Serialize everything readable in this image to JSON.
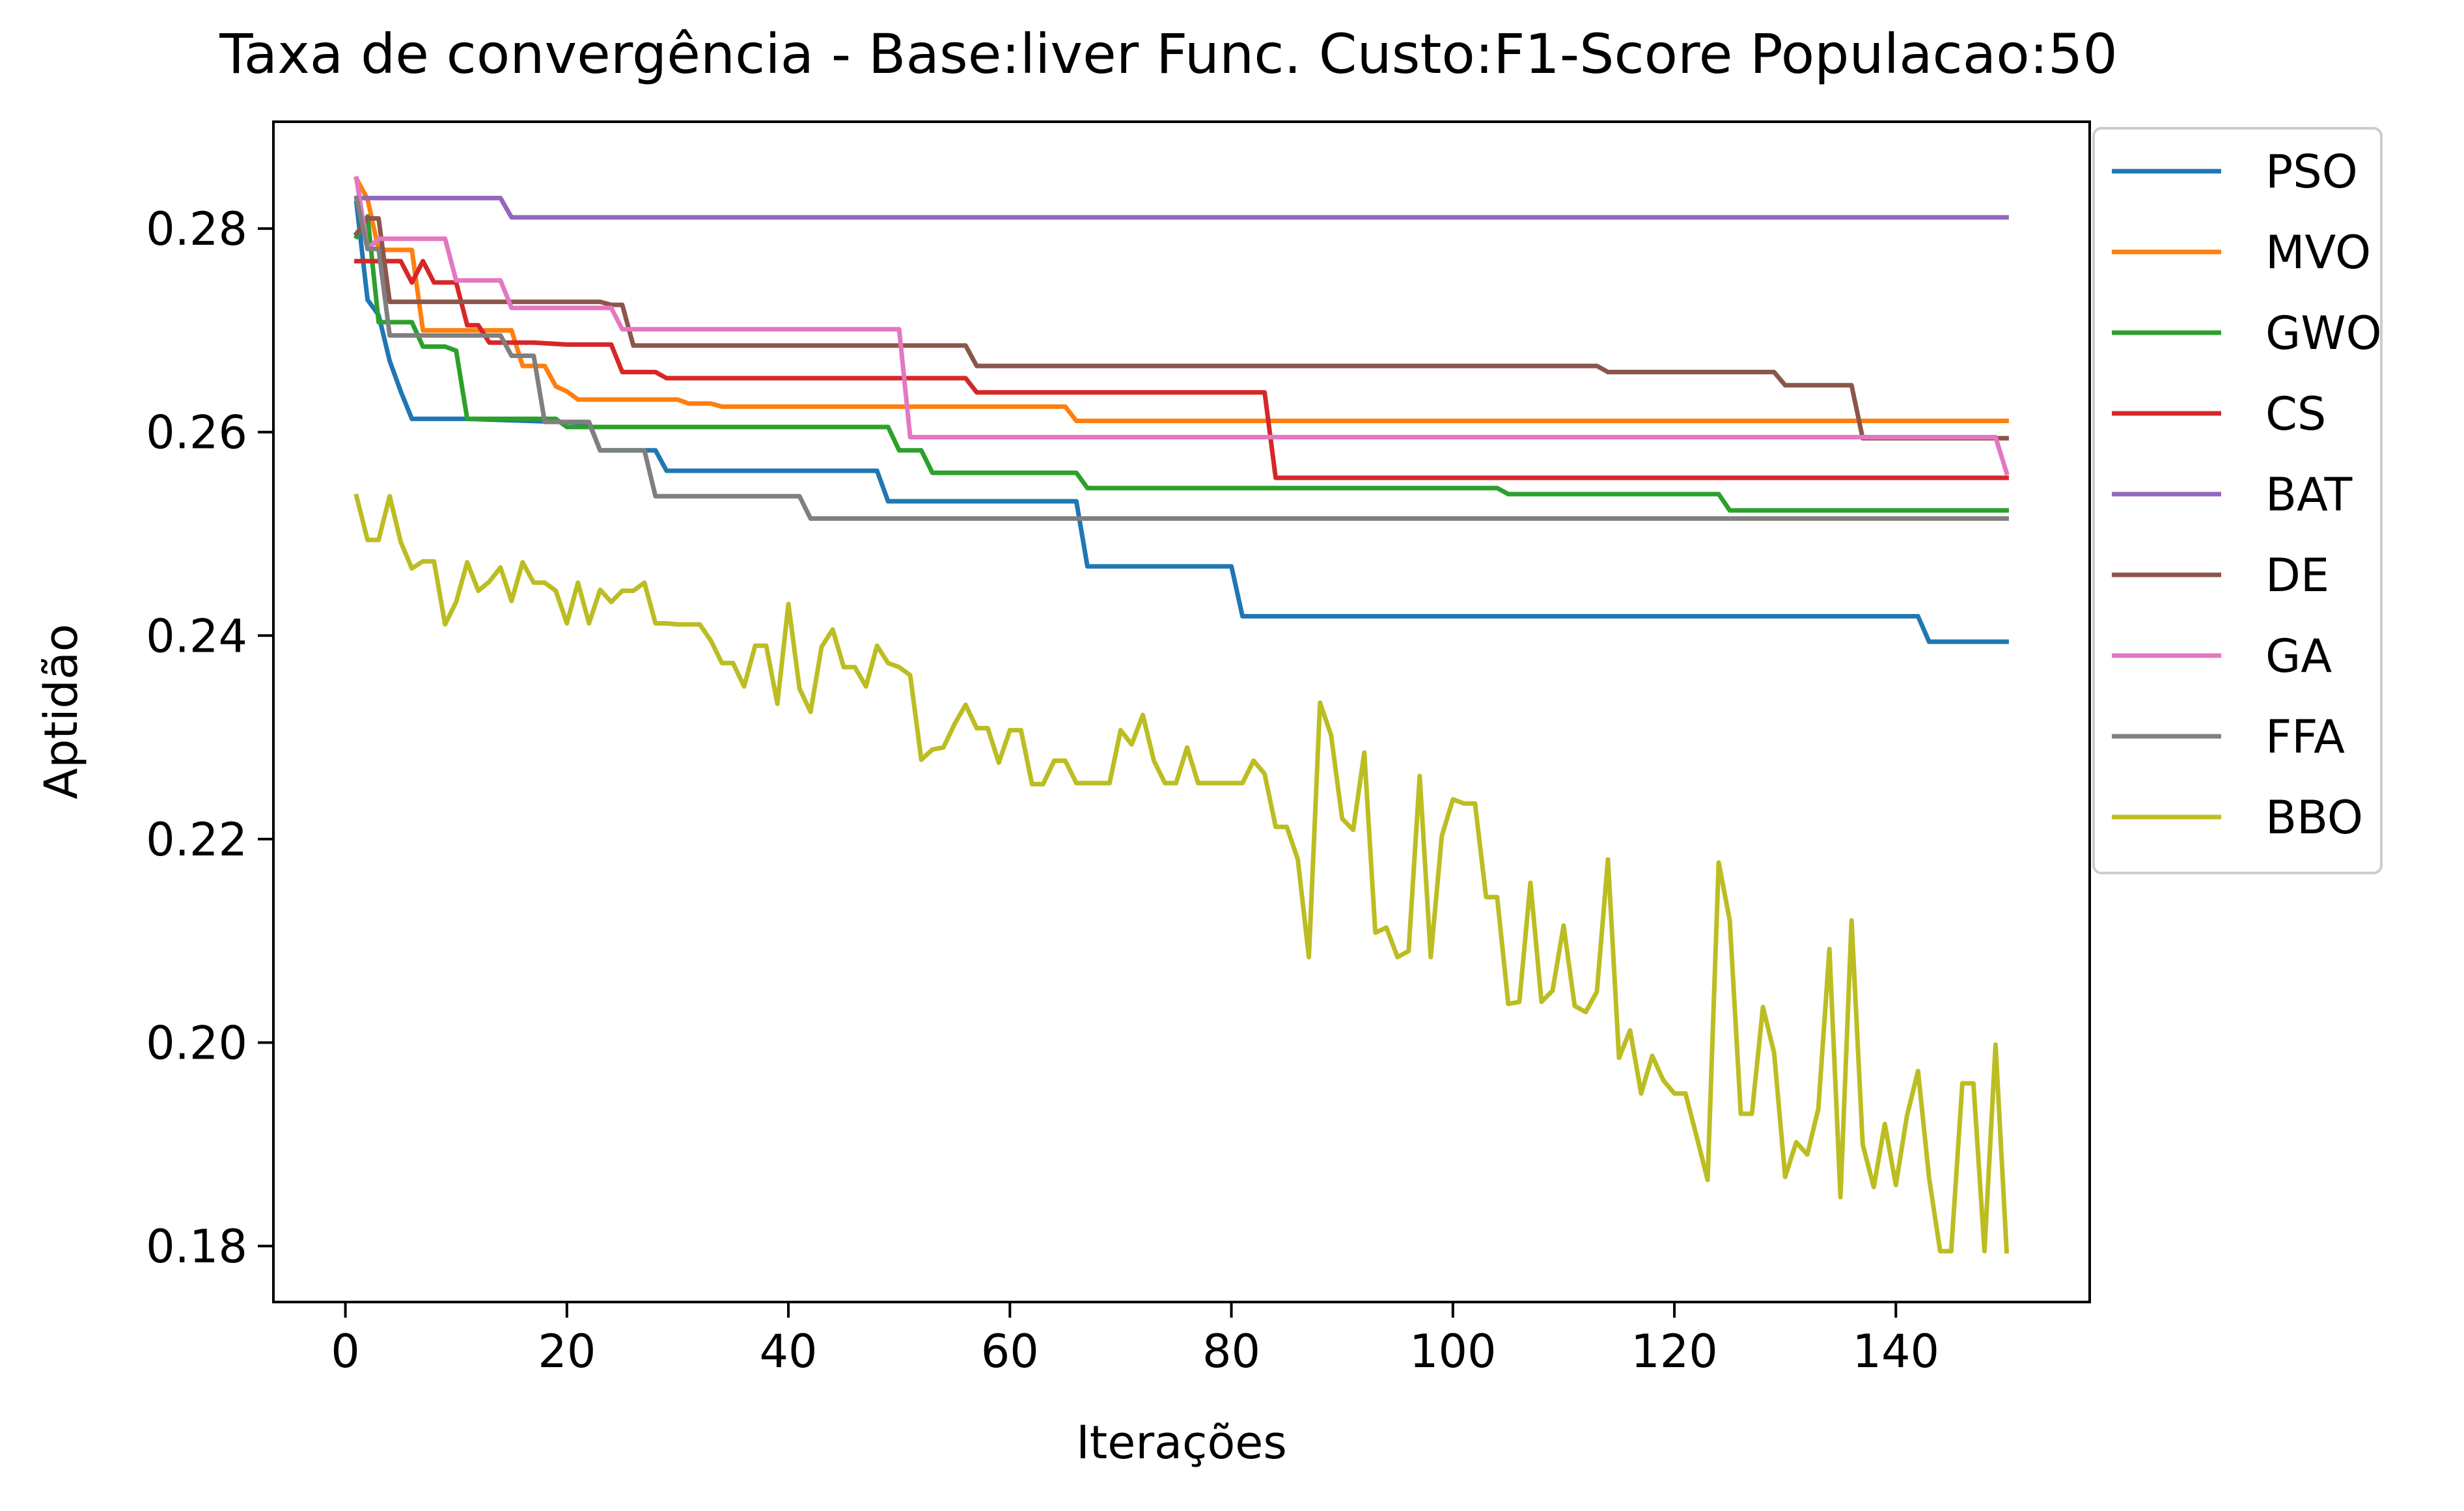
{
  "chart_data": {
    "type": "line",
    "title": "Taxa de convergência - Base:liver Func. Custo:F1-Score Populacao:50",
    "xlabel": "Iterações",
    "ylabel": "Aptidão",
    "xlim": [
      -6.5,
      157.5
    ],
    "ylim": [
      0.1745,
      0.2905
    ],
    "x_ticks": [
      0,
      20,
      40,
      60,
      80,
      100,
      120,
      140
    ],
    "x_tick_labels": [
      "0",
      "20",
      "40",
      "60",
      "80",
      "100",
      "120",
      "140"
    ],
    "y_ticks": [
      0.18,
      0.2,
      0.22,
      0.24,
      0.26,
      0.28
    ],
    "y_tick_labels": [
      "0.18",
      "0.20",
      "0.22",
      "0.24",
      "0.26",
      "0.28"
    ],
    "grid": false,
    "legend_placement": "outside-top-right",
    "series": [
      {
        "name": "PSO",
        "color": "#1f77b4",
        "x": [
          1,
          2,
          3,
          4,
          5,
          6,
          11,
          22,
          23,
          28,
          29,
          41,
          48,
          49,
          66,
          67,
          80,
          81,
          142,
          143,
          150
        ],
        "y": [
          0.2825,
          0.273,
          0.2715,
          0.267,
          0.264,
          0.2613,
          0.2613,
          0.2609,
          0.2582,
          0.2582,
          0.2562,
          0.2562,
          0.2562,
          0.2532,
          0.2532,
          0.2468,
          0.2468,
          0.2419,
          0.2419,
          0.2394,
          0.2394
        ]
      },
      {
        "name": "MVO",
        "color": "#ff7f0e",
        "x": [
          1,
          2,
          3,
          6,
          7,
          15,
          16,
          18,
          19,
          20,
          21,
          30,
          31,
          33,
          34,
          65,
          66,
          150
        ],
        "y": [
          0.2849,
          0.2829,
          0.2779,
          0.2779,
          0.27,
          0.27,
          0.2665,
          0.2665,
          0.2645,
          0.264,
          0.2632,
          0.2632,
          0.2628,
          0.2628,
          0.2625,
          0.2625,
          0.2611,
          0.2611
        ]
      },
      {
        "name": "GWO",
        "color": "#2ca02c",
        "x": [
          1,
          2,
          3,
          6,
          7,
          9,
          10,
          11,
          19,
          20,
          49,
          50,
          52,
          53,
          66,
          67,
          104,
          105,
          124,
          125,
          150
        ],
        "y": [
          0.2792,
          0.2812,
          0.2708,
          0.2708,
          0.2684,
          0.2684,
          0.268,
          0.2613,
          0.2613,
          0.2605,
          0.2605,
          0.2582,
          0.2582,
          0.256,
          0.256,
          0.2545,
          0.2545,
          0.2539,
          0.2539,
          0.2523,
          0.2523
        ]
      },
      {
        "name": "CS",
        "color": "#d62728",
        "x": [
          1,
          5,
          6,
          7,
          8,
          9,
          10,
          11,
          12,
          13,
          17,
          20,
          21,
          24,
          25,
          28,
          29,
          50,
          51,
          56,
          57,
          83,
          84,
          150
        ],
        "y": [
          0.2768,
          0.2768,
          0.2747,
          0.2768,
          0.2747,
          0.2747,
          0.2747,
          0.2705,
          0.2705,
          0.2688,
          0.2688,
          0.2686,
          0.2686,
          0.2686,
          0.2659,
          0.2659,
          0.2653,
          0.2653,
          0.2653,
          0.2653,
          0.2639,
          0.2639,
          0.2555,
          0.2555
        ]
      },
      {
        "name": "BAT",
        "color": "#9467bd",
        "x": [
          1,
          14,
          15,
          150
        ],
        "y": [
          0.283,
          0.283,
          0.2811,
          0.2811
        ]
      },
      {
        "name": "DE",
        "color": "#8c564b",
        "x": [
          1,
          2,
          3,
          4,
          23,
          24,
          25,
          26,
          56,
          57,
          113,
          114,
          129,
          130,
          134,
          135,
          136,
          137,
          150
        ],
        "y": [
          0.2795,
          0.281,
          0.281,
          0.2728,
          0.2728,
          0.2725,
          0.2725,
          0.2685,
          0.2685,
          0.2665,
          0.2665,
          0.2659,
          0.2659,
          0.2646,
          0.2646,
          0.2646,
          0.2646,
          0.2594,
          0.2594
        ]
      },
      {
        "name": "GA",
        "color": "#e377c2",
        "x": [
          1,
          2,
          3,
          9,
          10,
          14,
          15,
          24,
          25,
          50,
          51,
          149,
          150
        ],
        "y": [
          0.2849,
          0.278,
          0.279,
          0.279,
          0.2749,
          0.2749,
          0.2722,
          0.2722,
          0.2701,
          0.2701,
          0.2595,
          0.2595,
          0.256
        ]
      },
      {
        "name": "FFA",
        "color": "#7f7f7f",
        "x": [
          1,
          2,
          3,
          4,
          14,
          15,
          17,
          18,
          22,
          23,
          27,
          28,
          41,
          42,
          150
        ],
        "y": [
          0.283,
          0.278,
          0.278,
          0.2695,
          0.2695,
          0.2675,
          0.2675,
          0.261,
          0.261,
          0.2582,
          0.2582,
          0.2537,
          0.2537,
          0.2515,
          0.2515
        ]
      },
      {
        "name": "BBO",
        "color": "#bcbd22",
        "x": [
          1,
          2,
          3,
          4,
          5,
          6,
          7,
          8,
          9,
          10,
          11,
          12,
          13,
          14,
          15,
          16,
          17,
          18,
          19,
          20,
          21,
          22,
          23,
          24,
          25,
          26,
          27,
          28,
          29,
          30,
          31,
          32,
          33,
          34,
          35,
          36,
          37,
          38,
          39,
          40,
          41,
          42,
          43,
          44,
          45,
          46,
          47,
          48,
          49,
          50,
          51,
          52,
          53,
          54,
          55,
          56,
          57,
          58,
          59,
          60,
          61,
          62,
          63,
          64,
          65,
          66,
          67,
          68,
          69,
          70,
          71,
          72,
          73,
          74,
          75,
          76,
          77,
          78,
          79,
          80,
          81,
          82,
          83,
          84,
          85,
          86,
          87,
          88,
          89,
          90,
          91,
          92,
          93,
          94,
          95,
          96,
          97,
          98,
          99,
          100,
          101,
          102,
          103,
          104,
          105,
          106,
          107,
          108,
          109,
          110,
          111,
          112,
          113,
          114,
          115,
          116,
          117,
          118,
          119,
          120,
          121,
          122,
          123,
          124,
          125,
          126,
          127,
          128,
          129,
          130,
          131,
          132,
          133,
          134,
          135,
          136,
          137,
          138,
          139,
          140,
          141,
          142,
          143,
          144,
          145,
          146,
          147,
          148,
          149,
          150
        ],
        "y": [
          0.2537,
          0.2494,
          0.2494,
          0.2537,
          0.2492,
          0.2466,
          0.2473,
          0.2473,
          0.2411,
          0.2433,
          0.2472,
          0.2444,
          0.2453,
          0.2467,
          0.2434,
          0.2472,
          0.2452,
          0.2452,
          0.2444,
          0.2412,
          0.2452,
          0.2412,
          0.2445,
          0.2433,
          0.2444,
          0.2444,
          0.2452,
          0.2412,
          0.2412,
          0.2411,
          0.2411,
          0.2411,
          0.2395,
          0.2373,
          0.2373,
          0.235,
          0.239,
          0.239,
          0.2333,
          0.2431,
          0.2348,
          0.2325,
          0.2389,
          0.2406,
          0.2369,
          0.2369,
          0.235,
          0.239,
          0.2373,
          0.2369,
          0.2361,
          0.2278,
          0.2288,
          0.229,
          0.2313,
          0.2332,
          0.2309,
          0.2309,
          0.2275,
          0.2307,
          0.2307,
          0.2254,
          0.2254,
          0.2277,
          0.2277,
          0.2255,
          0.2255,
          0.2255,
          0.2255,
          0.2307,
          0.2293,
          0.2322,
          0.2277,
          0.2255,
          0.2255,
          0.229,
          0.2255,
          0.2255,
          0.2255,
          0.2255,
          0.2255,
          0.2277,
          0.2264,
          0.2212,
          0.2212,
          0.218,
          0.2084,
          0.2334,
          0.2302,
          0.222,
          0.2209,
          0.2285,
          0.2108,
          0.2113,
          0.2084,
          0.209,
          0.2262,
          0.2084,
          0.2203,
          0.2239,
          0.2235,
          0.2235,
          0.2143,
          0.2143,
          0.2038,
          0.204,
          0.2157,
          0.204,
          0.2051,
          0.2115,
          0.2036,
          0.203,
          0.205,
          0.218,
          0.1985,
          0.2012,
          0.195,
          0.1987,
          0.1963,
          0.195,
          0.195,
          0.1908,
          0.1865,
          0.2177,
          0.212,
          0.193,
          0.193,
          0.2035,
          0.199,
          0.1868,
          0.1902,
          0.189,
          0.1935,
          0.2092,
          0.1848,
          0.212,
          0.19,
          0.1858,
          0.192,
          0.186,
          0.1928,
          0.1972,
          0.1867,
          0.1795,
          0.1795,
          0.196,
          0.196,
          0.1795,
          0.1998,
          0.1795
        ]
      }
    ]
  }
}
